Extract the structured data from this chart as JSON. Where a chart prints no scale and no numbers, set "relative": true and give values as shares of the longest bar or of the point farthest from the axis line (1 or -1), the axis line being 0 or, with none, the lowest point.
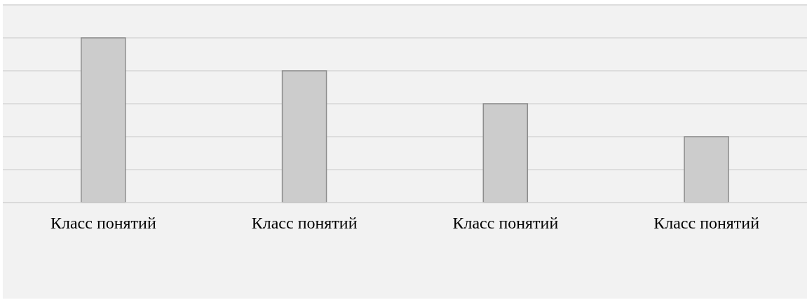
{
  "chart_data": {
    "type": "bar",
    "categories": [
      "Класс понятий",
      "Класс понятий",
      "Класс понятий",
      "Класс понятий"
    ],
    "values": [
      1,
      0.8,
      0.6,
      0.4
    ],
    "color": "#cccccc",
    "relative": true,
    "grid": "y"
  }
}
